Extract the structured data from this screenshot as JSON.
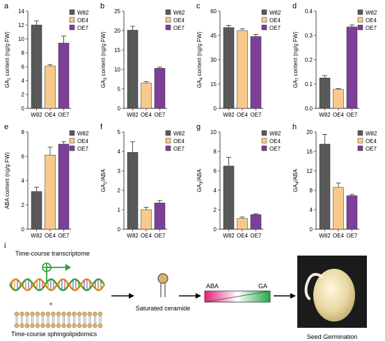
{
  "colors": {
    "W82": "#595959",
    "OE4": "#f8c98a",
    "OE7": "#7d3f98",
    "axis": "#333333",
    "helix_a": "#2f9e3a",
    "helix_b": "#e08a1e",
    "lipid_head": "#d9b36c",
    "gradient_left": "#e91e7a",
    "gradient_right": "#22aa44",
    "arrow": "#000000"
  },
  "legend_labels": [
    "W82",
    "OE4",
    "OE7"
  ],
  "chart_data": [
    {
      "panel_letter": "a",
      "type": "bar",
      "ylabel_main": "GA",
      "ylabel_sub": "1",
      "ylabel_tail": " content (ng/g FW)",
      "ylim": [
        0,
        14
      ],
      "yticks": [
        "0",
        "2",
        "4",
        "6",
        "8",
        "10",
        "12",
        "14"
      ],
      "categories": [
        "W82",
        "OE4",
        "OE7"
      ],
      "values": [
        12.0,
        6.1,
        9.4
      ],
      "errors": [
        0.6,
        0.2,
        1.0
      ]
    },
    {
      "panel_letter": "b",
      "type": "bar",
      "ylabel_main": "GA",
      "ylabel_sub": "3",
      "ylabel_tail": " content (ng/g FW)",
      "ylim": [
        0,
        25
      ],
      "yticks": [
        "0",
        "5",
        "10",
        "15",
        "20",
        "25"
      ],
      "categories": [
        "W82",
        "OE4",
        "OE7"
      ],
      "values": [
        20.1,
        6.5,
        10.3
      ],
      "errors": [
        1.0,
        0.4,
        0.3
      ]
    },
    {
      "panel_letter": "c",
      "type": "bar",
      "ylabel_main": "GA",
      "ylabel_sub": "4",
      "ylabel_tail": " content (ng/g FW)",
      "ylim": [
        0,
        65
      ],
      "yticks": [
        "0",
        "15",
        "30",
        "45",
        "60"
      ],
      "categories": [
        "W82",
        "OE4",
        "OE7"
      ],
      "values": [
        54.0,
        52.0,
        48.0
      ],
      "errors": [
        1.5,
        1.2,
        1.5
      ]
    },
    {
      "panel_letter": "d",
      "type": "bar",
      "ylabel_main": "GA",
      "ylabel_sub": "7",
      "ylabel_tail": " content (ng/g FW)",
      "ylim": [
        0,
        0.4
      ],
      "yticks": [
        "0.0",
        "0.1",
        "0.2",
        "0.3",
        "0.4"
      ],
      "categories": [
        "W82",
        "OE4",
        "OE7"
      ],
      "values": [
        0.125,
        0.078,
        0.335
      ],
      "errors": [
        0.01,
        0.003,
        0.008
      ]
    },
    {
      "panel_letter": "e",
      "type": "bar",
      "ylabel_main": "ABA content (ng/g FW)",
      "ylabel_sub": "",
      "ylabel_tail": "",
      "ylim": [
        0,
        8
      ],
      "yticks": [
        "0",
        "2",
        "4",
        "6",
        "8"
      ],
      "categories": [
        "W82",
        "OE4",
        "OE7"
      ],
      "values": [
        3.1,
        6.1,
        7.0
      ],
      "errors": [
        0.35,
        0.65,
        0.2
      ]
    },
    {
      "panel_letter": "f",
      "type": "bar",
      "ylabel_main": "GA",
      "ylabel_sub": "1",
      "ylabel_tail": "/ABA",
      "ylim": [
        0,
        5
      ],
      "yticks": [
        "0",
        "1",
        "2",
        "3",
        "4",
        "5"
      ],
      "categories": [
        "W82",
        "OE4",
        "OE7"
      ],
      "values": [
        3.95,
        1.0,
        1.35
      ],
      "errors": [
        0.55,
        0.12,
        0.12
      ]
    },
    {
      "panel_letter": "g",
      "type": "bar",
      "ylabel_main": "GA",
      "ylabel_sub": "3",
      "ylabel_tail": "/ABA",
      "ylim": [
        0,
        10
      ],
      "yticks": [
        "0",
        "2",
        "4",
        "6",
        "8",
        "10"
      ],
      "categories": [
        "W82",
        "OE4",
        "OE7"
      ],
      "values": [
        6.5,
        1.1,
        1.5
      ],
      "errors": [
        0.9,
        0.15,
        0.08
      ]
    },
    {
      "panel_letter": "h",
      "type": "bar",
      "ylabel_main": "GA",
      "ylabel_sub": "4",
      "ylabel_tail": "/ABA",
      "ylim": [
        0,
        20
      ],
      "yticks": [
        "0",
        "4",
        "8",
        "12",
        "16",
        "20"
      ],
      "categories": [
        "W82",
        "OE4",
        "OE7"
      ],
      "values": [
        17.5,
        8.6,
        6.9
      ],
      "errors": [
        2.0,
        0.9,
        0.25
      ]
    }
  ],
  "schematic": {
    "panel_letter": "i",
    "transcriptome_label": "Time-course transcriptome",
    "plus_sign": "+",
    "sphingolipidomics_label": "Time-course sphingolipidomics",
    "ceramide_label": "Saturated ceramide",
    "gradient_left_label": "ABA",
    "gradient_right_label": "GA",
    "germination_label": "Seed Germination"
  }
}
